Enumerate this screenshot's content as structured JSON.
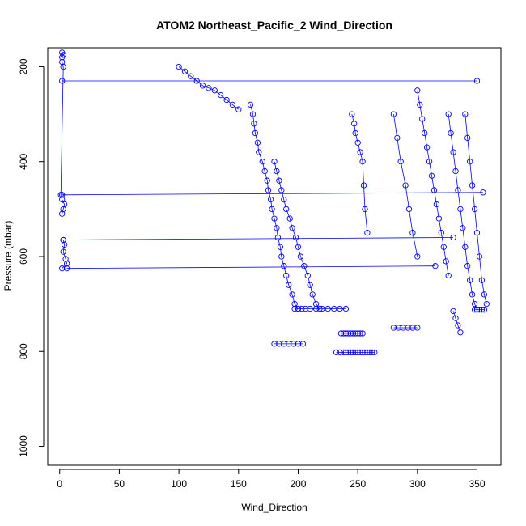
{
  "chart_data": {
    "type": "scatter",
    "title": "ATOM2 Northeast_Pacific_2 Wind_Direction",
    "xlabel": "Wind_Direction",
    "ylabel": "Pressure (mbar)",
    "xlim": [
      -10,
      370
    ],
    "ylim": [
      1040,
      160
    ],
    "x_ticks": [
      0,
      50,
      100,
      150,
      200,
      250,
      300,
      350
    ],
    "y_ticks": [
      200,
      400,
      600,
      800,
      1000
    ],
    "y_inverted": true,
    "grid": false,
    "legend": "none",
    "marker": "open-circle",
    "connected_lines": true,
    "series_color": "#0000ff",
    "series": [
      {
        "x": [
          2,
          3,
          2,
          2,
          3,
          1,
          2,
          4,
          3,
          2
        ],
        "y": [
          170,
          175,
          180,
          190,
          200,
          470,
          480,
          490,
          500,
          510
        ]
      },
      {
        "x": [
          3,
          4,
          3,
          5,
          6,
          2
        ],
        "y": [
          565,
          575,
          590,
          605,
          615,
          625
        ]
      },
      {
        "x": [
          160,
          162,
          163,
          164,
          166,
          167,
          170,
          172,
          174,
          175,
          177,
          178,
          180,
          182,
          183,
          185,
          186,
          188,
          190,
          192,
          195,
          197,
          200
        ],
        "y": [
          280,
          300,
          320,
          340,
          360,
          380,
          400,
          420,
          440,
          460,
          480,
          500,
          520,
          540,
          560,
          580,
          600,
          620,
          640,
          660,
          680,
          700,
          710
        ]
      },
      {
        "x": [
          180,
          182,
          184,
          186,
          188,
          190,
          193,
          195,
          198,
          200,
          202,
          205,
          208,
          210,
          212,
          215,
          218
        ],
        "y": [
          400,
          420,
          440,
          460,
          480,
          500,
          520,
          540,
          560,
          580,
          600,
          620,
          640,
          660,
          680,
          700,
          710
        ]
      },
      {
        "x": [
          197,
          200,
          203,
          206,
          210,
          215,
          220,
          225,
          230,
          235,
          240
        ],
        "y": [
          710,
          710,
          710,
          710,
          710,
          710,
          710,
          710,
          710,
          710,
          710
        ]
      },
      {
        "x": [
          180,
          184,
          188,
          192,
          196,
          200,
          204
        ],
        "y": [
          784,
          784,
          784,
          784,
          784,
          784,
          784
        ]
      },
      {
        "x": [
          232,
          235,
          238,
          240,
          242,
          244,
          246,
          248,
          250,
          252,
          254,
          256,
          258,
          260,
          262,
          264
        ],
        "y": [
          802,
          802,
          802,
          802,
          802,
          802,
          802,
          802,
          802,
          802,
          802,
          802,
          802,
          802,
          802,
          802
        ]
      },
      {
        "x": [
          236,
          238,
          240,
          242,
          244,
          246,
          248,
          250,
          252,
          254
        ],
        "y": [
          762,
          762,
          762,
          762,
          762,
          762,
          762,
          762,
          762,
          762
        ]
      },
      {
        "x": [
          280,
          284,
          288,
          292,
          296,
          300
        ],
        "y": [
          750,
          750,
          750,
          750,
          750,
          750
        ]
      },
      {
        "x": [
          300,
          302,
          304,
          306,
          308,
          310,
          312,
          314,
          316,
          318,
          320,
          322,
          324,
          326
        ],
        "y": [
          250,
          280,
          310,
          340,
          370,
          400,
          430,
          460,
          490,
          520,
          550,
          580,
          610,
          640
        ]
      },
      {
        "x": [
          326,
          328,
          330,
          332,
          334,
          336,
          338,
          340,
          342,
          344,
          346,
          348,
          350
        ],
        "y": [
          300,
          340,
          380,
          420,
          460,
          500,
          540,
          580,
          620,
          650,
          680,
          700,
          712
        ]
      },
      {
        "x": [
          340,
          342,
          344,
          346,
          348,
          350,
          352,
          354,
          356,
          358
        ],
        "y": [
          300,
          350,
          400,
          450,
          500,
          550,
          600,
          650,
          680,
          700
        ]
      },
      {
        "x": [
          348,
          350,
          352,
          354,
          356
        ],
        "y": [
          712,
          712,
          712,
          712,
          712
        ]
      },
      {
        "x": [
          330,
          332,
          334,
          336
        ],
        "y": [
          715,
          730,
          745,
          760
        ]
      },
      {
        "x": [
          100,
          105,
          110,
          115,
          120,
          125,
          130,
          135,
          140,
          145,
          150
        ],
        "y": [
          200,
          210,
          220,
          230,
          240,
          245,
          250,
          260,
          270,
          280,
          290
        ]
      },
      {
        "x": [
          245,
          247,
          248,
          250,
          252,
          254,
          255,
          256,
          258
        ],
        "y": [
          300,
          320,
          340,
          360,
          380,
          400,
          450,
          500,
          550
        ]
      },
      {
        "x": [
          280,
          283,
          286,
          290,
          293,
          296,
          300
        ],
        "y": [
          300,
          350,
          400,
          450,
          500,
          550,
          600
        ]
      },
      {
        "x": [
          2,
          350
        ],
        "y": [
          230,
          230
        ]
      },
      {
        "x": [
          2,
          355
        ],
        "y": [
          470,
          465
        ]
      },
      {
        "x": [
          3,
          330
        ],
        "y": [
          565,
          560
        ]
      },
      {
        "x": [
          6,
          315
        ],
        "y": [
          625,
          620
        ]
      }
    ]
  }
}
